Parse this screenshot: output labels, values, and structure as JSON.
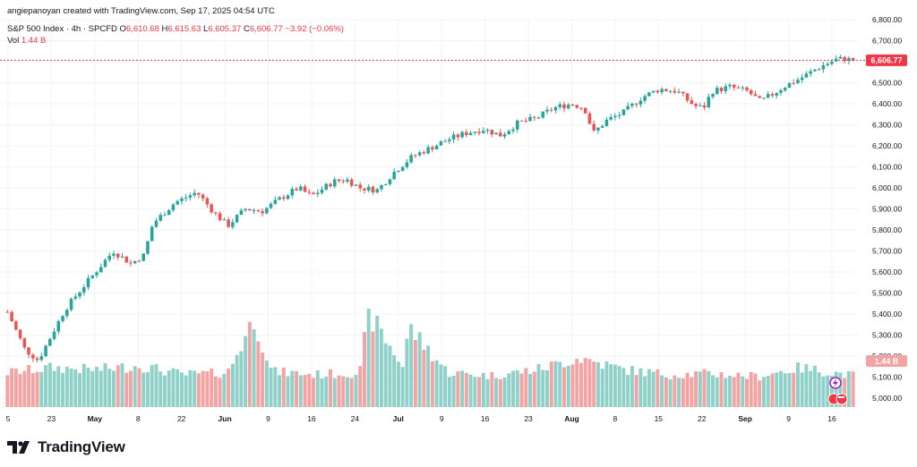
{
  "credit": "angiepanoyan created with TradingView.com, Sep 17, 2025 04:54 UTC",
  "symbol": {
    "name": "S&P 500 Index · 4h · SPCFD",
    "open_label": "O",
    "open": "6,610.68",
    "high_label": "H",
    "high": "6,615.63",
    "low_label": "L",
    "low": "6,605.37",
    "close_label": "C",
    "close": "6,606.77",
    "change": "−3.92 (−0.06%)"
  },
  "volume": {
    "label": "Vol",
    "value": "1.44 B"
  },
  "brand": "TradingView",
  "colors": {
    "up": "#26a69a",
    "down": "#ef5350",
    "vol_up": "#8fd0c8",
    "vol_down": "#f4a3a3",
    "price_line": "#f23645"
  },
  "chart_data": {
    "type": "candlestick",
    "title": "S&P 500 Index · 4h · SPCFD",
    "ylim": [
      4900,
      6850
    ],
    "y_ticks": [
      "6,800.00",
      "6,700.00",
      "6,600.00",
      "6,500.00",
      "6,400.00",
      "6,300.00",
      "6,200.00",
      "6,100.00",
      "6,000.00",
      "5,900.00",
      "5,800.00",
      "5,700.00",
      "5,600.00",
      "5,500.00",
      "5,400.00",
      "5,300.00",
      "5,200.00",
      "5,100.00",
      "5,000.00"
    ],
    "x_ticks": [
      "5",
      "23",
      "May",
      "8",
      "22",
      "Jun",
      "9",
      "16",
      "24",
      "Jul",
      "9",
      "16",
      "23",
      "Aug",
      "8",
      "15",
      "22",
      "Sep",
      "9",
      "16"
    ],
    "last_price": "6,606.77",
    "last_volume": "1.44 B",
    "price_path": [
      [
        0,
        5410
      ],
      [
        0.02,
        5230
      ],
      [
        0.035,
        5180
      ],
      [
        0.05,
        5300
      ],
      [
        0.065,
        5420
      ],
      [
        0.08,
        5500
      ],
      [
        0.1,
        5600
      ],
      [
        0.12,
        5700
      ],
      [
        0.14,
        5640
      ],
      [
        0.155,
        5680
      ],
      [
        0.165,
        5830
      ],
      [
        0.19,
        5930
      ],
      [
        0.215,
        5980
      ],
      [
        0.235,
        5880
      ],
      [
        0.25,
        5820
      ],
      [
        0.27,
        5900
      ],
      [
        0.29,
        5890
      ],
      [
        0.31,
        5950
      ],
      [
        0.33,
        6000
      ],
      [
        0.345,
        5960
      ],
      [
        0.37,
        6030
      ],
      [
        0.385,
        6040
      ],
      [
        0.4,
        6000
      ],
      [
        0.42,
        5990
      ],
      [
        0.44,
        6080
      ],
      [
        0.46,
        6150
      ],
      [
        0.48,
        6190
      ],
      [
        0.5,
        6230
      ],
      [
        0.52,
        6260
      ],
      [
        0.54,
        6280
      ],
      [
        0.56,
        6250
      ],
      [
        0.58,
        6310
      ],
      [
        0.6,
        6330
      ],
      [
        0.62,
        6380
      ],
      [
        0.64,
        6400
      ],
      [
        0.655,
        6380
      ],
      [
        0.665,
        6260
      ],
      [
        0.68,
        6320
      ],
      [
        0.7,
        6360
      ],
      [
        0.72,
        6430
      ],
      [
        0.74,
        6470
      ],
      [
        0.76,
        6460
      ],
      [
        0.78,
        6390
      ],
      [
        0.79,
        6380
      ],
      [
        0.8,
        6460
      ],
      [
        0.82,
        6480
      ],
      [
        0.84,
        6460
      ],
      [
        0.855,
        6410
      ],
      [
        0.87,
        6450
      ],
      [
        0.885,
        6490
      ],
      [
        0.9,
        6520
      ],
      [
        0.92,
        6570
      ],
      [
        0.94,
        6610
      ],
      [
        0.95,
        6615
      ],
      [
        0.96,
        6607
      ]
    ],
    "volume_path": [
      [
        0,
        0.35
      ],
      [
        0.05,
        0.4
      ],
      [
        0.1,
        0.38
      ],
      [
        0.15,
        0.42
      ],
      [
        0.2,
        0.33
      ],
      [
        0.25,
        0.35
      ],
      [
        0.28,
        0.9
      ],
      [
        0.3,
        0.36
      ],
      [
        0.35,
        0.33
      ],
      [
        0.4,
        0.35
      ],
      [
        0.41,
        0.95
      ],
      [
        0.45,
        0.4
      ],
      [
        0.455,
        0.82
      ],
      [
        0.5,
        0.35
      ],
      [
        0.55,
        0.32
      ],
      [
        0.6,
        0.38
      ],
      [
        0.65,
        0.5
      ],
      [
        0.7,
        0.38
      ],
      [
        0.75,
        0.33
      ],
      [
        0.8,
        0.34
      ],
      [
        0.85,
        0.31
      ],
      [
        0.9,
        0.4
      ],
      [
        0.96,
        0.32
      ]
    ]
  }
}
